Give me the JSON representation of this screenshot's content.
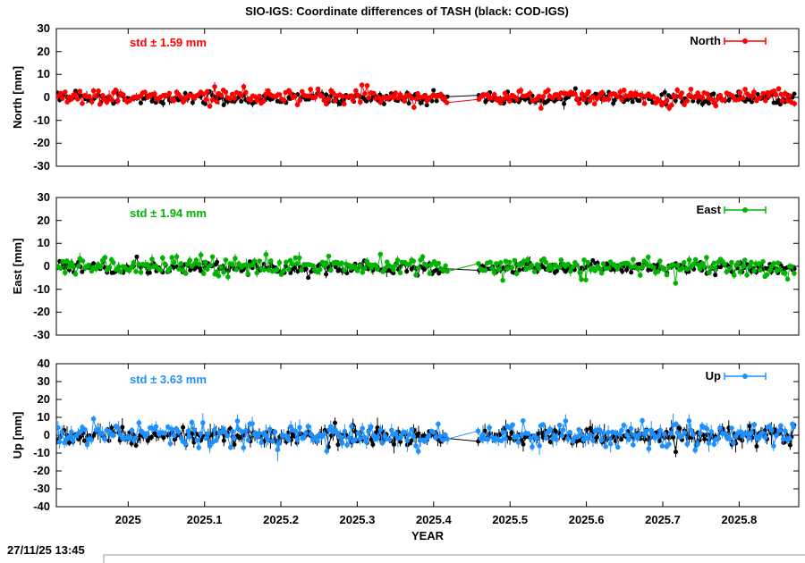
{
  "title": "SIO-IGS: Coordinate differences of TASH (black: COD-IGS)",
  "timestamp": "27/11/25 13:45",
  "xlabel": "YEAR",
  "background": "#ffffff",
  "frame_color": "#000000",
  "x_range": [
    2024.906,
    2025.878
  ],
  "data_x_range": [
    2024.908,
    2025.872
  ],
  "gap": [
    2025.418,
    2025.458
  ],
  "x_ticks": [
    {
      "value": 2025.0,
      "label": "2025"
    },
    {
      "value": 2025.1,
      "label": "2025.1"
    },
    {
      "value": 2025.2,
      "label": "2025.2"
    },
    {
      "value": 2025.3,
      "label": "2025.3"
    },
    {
      "value": 2025.4,
      "label": "2025.4"
    },
    {
      "value": 2025.5,
      "label": "2025.5"
    },
    {
      "value": 2025.6,
      "label": "2025.6"
    },
    {
      "value": 2025.7,
      "label": "2025.7"
    },
    {
      "value": 2025.8,
      "label": "2025.8"
    }
  ],
  "chart_data": [
    {
      "type": "scatter",
      "key": "north",
      "ylabel": "North [mm]",
      "ylim": [
        -30,
        30
      ],
      "ytick_step": 10,
      "y_tick_labels": [
        "30",
        "20",
        "10",
        "0",
        "-10",
        "-20",
        "-30"
      ],
      "std_label": "std ± 1.59 mm",
      "std_mm": 1.59,
      "legend": "North",
      "legend_position": "top-right",
      "color": "#ff0000",
      "series": [
        {
          "name": "COD-IGS",
          "color": "#000000",
          "mean_mm": -0.4,
          "spread_mm": 1.35,
          "clip_mm": 5.5,
          "seed": 7701,
          "n_points": 330,
          "point_r": 2.5,
          "errbar_base_mm": 0.5,
          "errbar_var_mm": 0.7
        },
        {
          "name": "SIO-IGS",
          "color": "#ff0000",
          "mean_mm": 0.4,
          "spread_mm": 1.7,
          "clip_mm": 7.0,
          "seed": 1101,
          "n_points": 330,
          "point_r": 2.8,
          "errbar_base_mm": 0.5,
          "errbar_var_mm": 0.7
        }
      ]
    },
    {
      "type": "scatter",
      "key": "east",
      "ylabel": "East [mm]",
      "ylim": [
        -30,
        30
      ],
      "ytick_step": 10,
      "y_tick_labels": [
        "30",
        "20",
        "10",
        "0",
        "-10",
        "-20",
        "-30"
      ],
      "std_label": "std ± 1.94 mm",
      "std_mm": 1.94,
      "legend": "East",
      "legend_position": "top-right",
      "color": "#00b400",
      "series": [
        {
          "name": "COD-IGS",
          "color": "#000000",
          "mean_mm": -0.6,
          "spread_mm": 1.3,
          "clip_mm": 5.5,
          "seed": 7702,
          "n_points": 330,
          "point_r": 2.5,
          "errbar_base_mm": 0.5,
          "errbar_var_mm": 0.7
        },
        {
          "name": "SIO-IGS",
          "color": "#00b400",
          "mean_mm": 0.2,
          "spread_mm": 2.0,
          "clip_mm": 7.5,
          "seed": 1102,
          "n_points": 330,
          "point_r": 2.8,
          "errbar_base_mm": 0.5,
          "errbar_var_mm": 0.7
        }
      ]
    },
    {
      "type": "scatter",
      "key": "up",
      "ylabel": "Up [mm]",
      "ylim": [
        -40,
        40
      ],
      "ytick_step": 10,
      "y_tick_labels": [
        "40",
        "30",
        "20",
        "10",
        "0",
        "-10",
        "-20",
        "-30",
        "-40"
      ],
      "std_label": "std ± 3.63 mm",
      "std_mm": 3.63,
      "legend": "Up",
      "legend_position": "top-right",
      "color": "#1e90ff",
      "series": [
        {
          "name": "COD-IGS",
          "color": "#000000",
          "mean_mm": -0.5,
          "spread_mm": 2.6,
          "clip_mm": 11.0,
          "seed": 7703,
          "n_points": 330,
          "point_r": 2.5,
          "errbar_base_mm": 1.0,
          "errbar_var_mm": 1.8
        },
        {
          "name": "SIO-IGS",
          "color": "#1e90ff",
          "mean_mm": 0.2,
          "spread_mm": 3.6,
          "clip_mm": 13.0,
          "seed": 1103,
          "n_points": 330,
          "point_r": 2.8,
          "errbar_base_mm": 1.0,
          "errbar_var_mm": 1.8
        }
      ]
    }
  ]
}
